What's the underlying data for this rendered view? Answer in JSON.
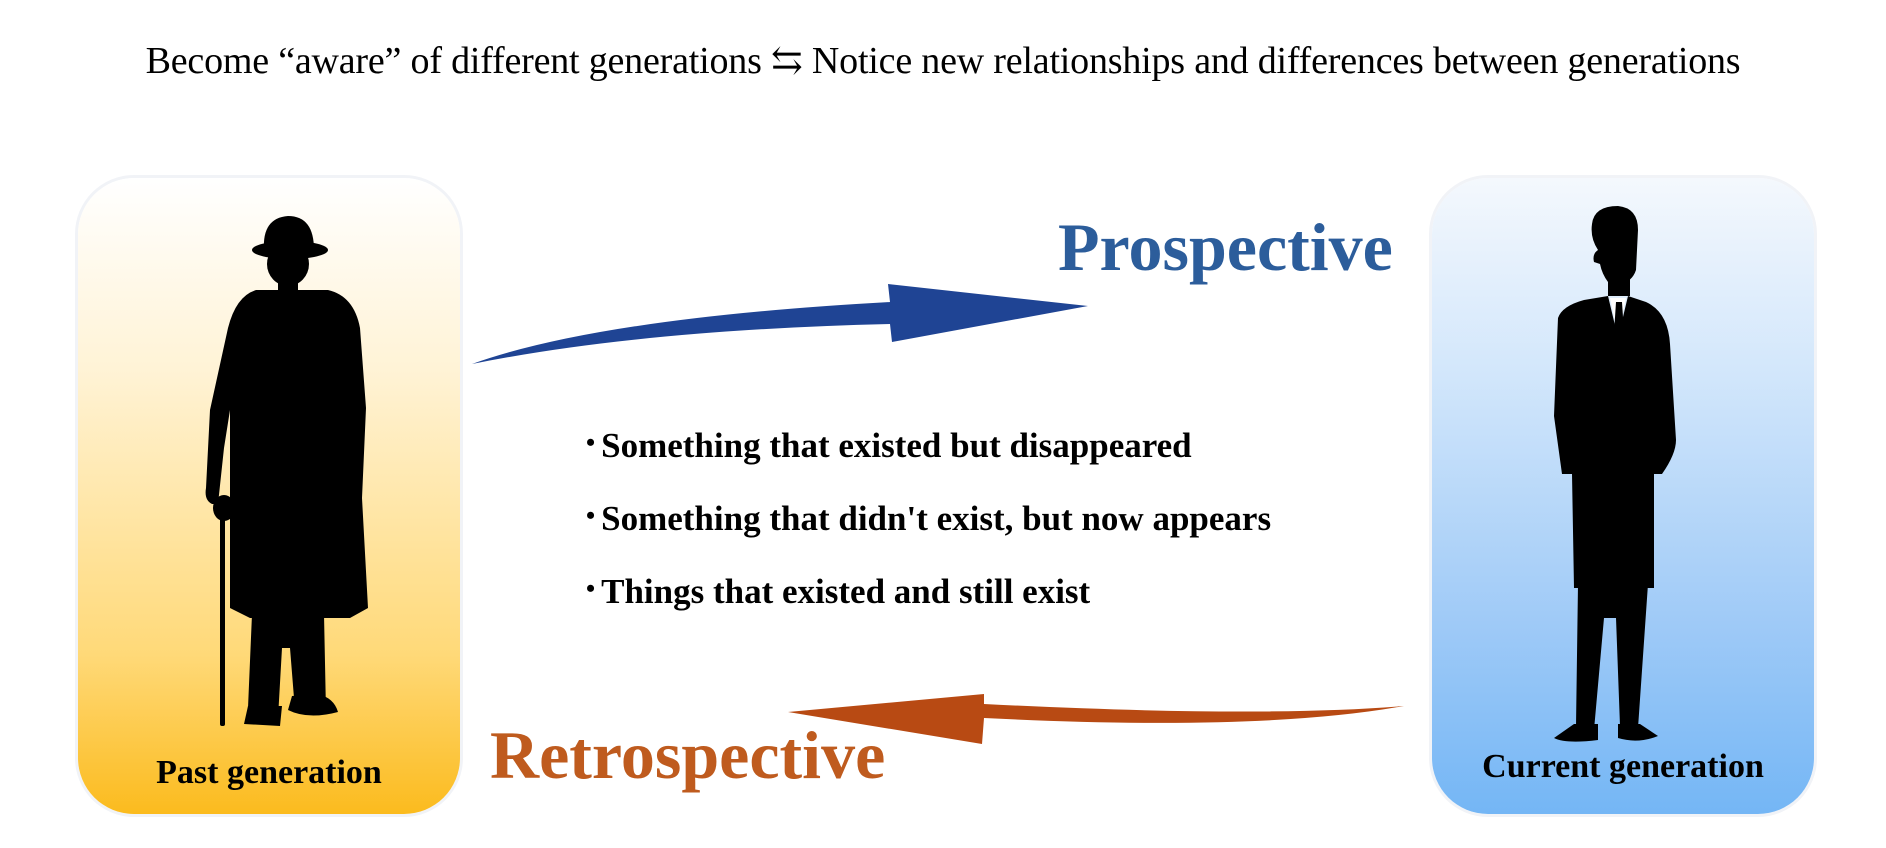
{
  "headline": "Become “aware” of different generations ⇆ Notice new relationships and differences between generations",
  "past_panel": {
    "label": "Past generation",
    "figure_icon": "elderly-man-with-hat-and-cane-silhouette-icon",
    "gradient_colors": [
      "#ffffff",
      "#fbbb1e"
    ]
  },
  "current_panel": {
    "label": "Current generation",
    "figure_icon": "businessman-in-suit-silhouette-icon",
    "gradient_colors": [
      "#f4f8fd",
      "#74b6f5"
    ]
  },
  "prospective": {
    "label": "Prospective",
    "color": "#2c5d9b",
    "arrow_color": "#1f4494",
    "arrow_icon": "curved-arrow-right-icon"
  },
  "retrospective": {
    "label": "Retrospective",
    "color": "#bf5b1e",
    "arrow_color": "#b84a13",
    "arrow_icon": "curved-arrow-left-icon"
  },
  "bullets": [
    {
      "marker": "•",
      "text": "Something that existed but disappeared"
    },
    {
      "marker": "•",
      "text": "Something that didn't exist, but now appears"
    },
    {
      "marker": "•",
      "text": "Things that existed and still exist"
    }
  ]
}
